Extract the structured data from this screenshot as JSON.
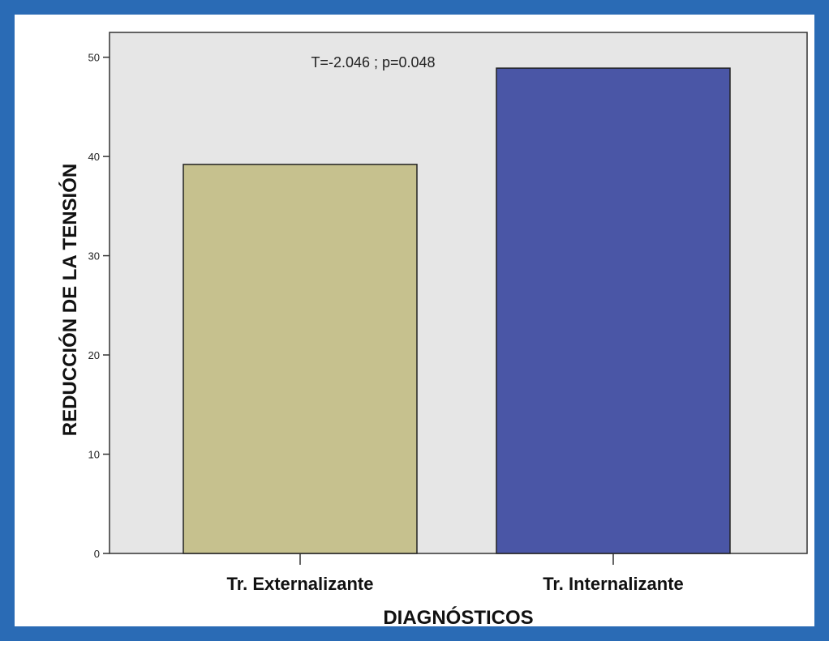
{
  "colors": {
    "frame": "#2a6bb5",
    "plot_background": "#e6e6e6",
    "bar_externalizante": "#c6c18e",
    "bar_internalizante": "#4a56a6",
    "axis": "#333333",
    "text": "#111111"
  },
  "chart_data": {
    "type": "bar",
    "categories": [
      "Tr. Externalizante",
      "Tr. Internalizante"
    ],
    "values": [
      39.2,
      48.9
    ],
    "title": "",
    "xlabel": "DIAGNÓSTICOS",
    "ylabel": "REDUCCIÓN DE LA TENSIÓN",
    "ylim": [
      0,
      52.5
    ],
    "yticks": [
      0,
      10,
      20,
      30,
      40,
      50
    ],
    "annotation": "T=-2.046 ; p=0.048",
    "grid": false,
    "legend": "none"
  }
}
